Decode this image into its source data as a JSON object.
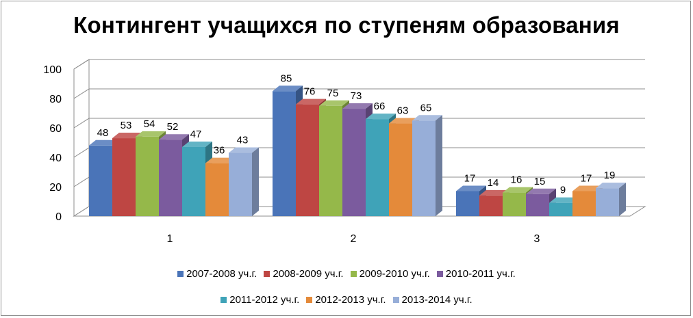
{
  "chart_data": {
    "type": "bar",
    "title": "Контингент учащихся по ступеням образования",
    "categories": [
      "1",
      "2",
      "3"
    ],
    "ylim": [
      0,
      100
    ],
    "yticks": [
      "0",
      "20",
      "40",
      "60",
      "80",
      "100"
    ],
    "grid": true,
    "legend_position": "bottom",
    "series": [
      {
        "name": "2007-2008 уч.г.",
        "color": "#4a74b8",
        "values": [
          48,
          85,
          17
        ]
      },
      {
        "name": "2008-2009 уч.г.",
        "color": "#be4643",
        "values": [
          53,
          76,
          14
        ]
      },
      {
        "name": "2009-2010 уч.г.",
        "color": "#95b84a",
        "values": [
          54,
          75,
          16
        ]
      },
      {
        "name": "2010-2011 уч.г.",
        "color": "#7b5b9e",
        "values": [
          52,
          73,
          15
        ]
      },
      {
        "name": "2011-2012 уч.г.",
        "color": "#3fa3b8",
        "values": [
          47,
          66,
          9
        ]
      },
      {
        "name": "2012-2013 уч.г.",
        "color": "#e48a3a",
        "values": [
          36,
          63,
          17
        ]
      },
      {
        "name": "2013-2014 уч.г.",
        "color": "#97aed8",
        "values": [
          43,
          65,
          19
        ]
      }
    ]
  }
}
